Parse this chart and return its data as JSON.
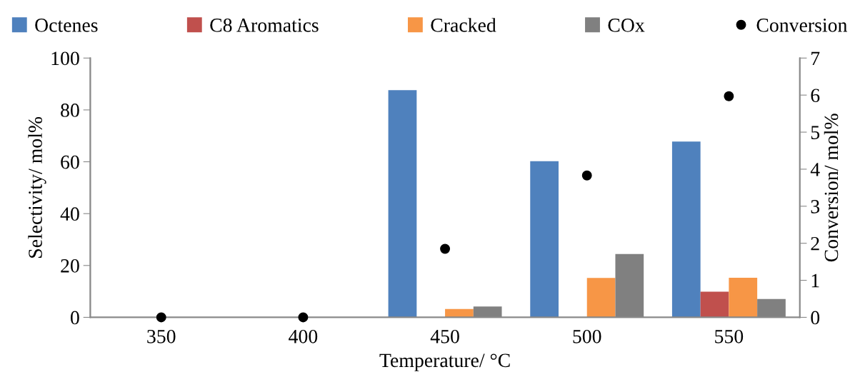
{
  "chart_data": {
    "type": "bar",
    "xlabel": "Temperature/ °C",
    "ylabel": "Selectivity/ mol%",
    "y2label": "Conversion/ mol%",
    "categories": [
      "350",
      "400",
      "450",
      "500",
      "550"
    ],
    "series": [
      {
        "name": "Octenes",
        "color": "#4f81bd",
        "values": [
          0,
          0,
          87.6,
          60.2,
          67.8
        ]
      },
      {
        "name": "C8 Aromatics",
        "color": "#c0504d",
        "values": [
          0,
          0,
          0,
          0,
          9.9
        ]
      },
      {
        "name": "Cracked",
        "color": "#f79646",
        "values": [
          0,
          0,
          3.2,
          15.2,
          15.3
        ]
      },
      {
        "name": "COx",
        "color": "#808080",
        "values": [
          0,
          0,
          4.2,
          24.4,
          7.1
        ]
      },
      {
        "name": "Conversion",
        "type": "scatter",
        "axis": "y2",
        "color": "#000000",
        "marker": "circle",
        "values": [
          0,
          0,
          1.85,
          3.83,
          5.97
        ]
      }
    ],
    "ylim": [
      0,
      100
    ],
    "yticks": [
      0,
      20,
      40,
      60,
      80,
      100
    ],
    "y2lim": [
      0,
      7
    ],
    "y2ticks": [
      0,
      1,
      2,
      3,
      4,
      5,
      6,
      7
    ],
    "grid": false,
    "legend": "top"
  }
}
